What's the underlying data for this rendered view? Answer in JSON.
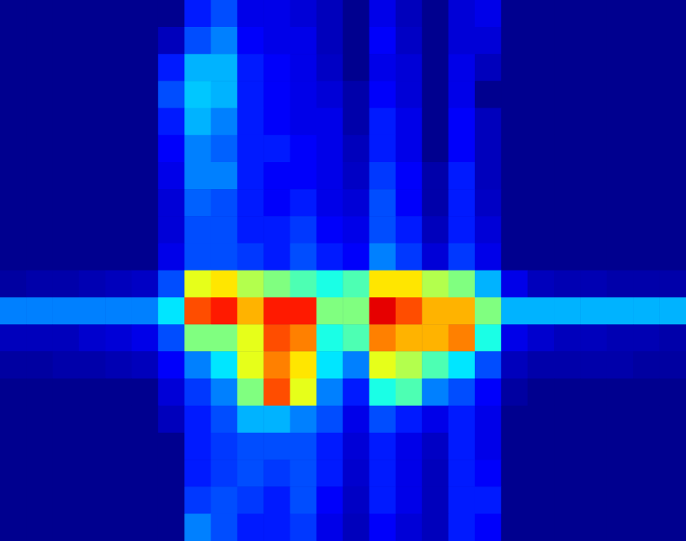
{
  "chart_data": {
    "type": "heatmap",
    "tick_labels": false,
    "grid": false,
    "value_range": [
      0,
      10
    ],
    "cells": [
      [
        0,
        0,
        0,
        0,
        0,
        0,
        0,
        1.5,
        2,
        1,
        1,
        0.8,
        0.5,
        0,
        1,
        0.5,
        0,
        0.8,
        1,
        0,
        0,
        0,
        0,
        0,
        0,
        0
      ],
      [
        0,
        0,
        0,
        0,
        0,
        0,
        0.5,
        2,
        2.5,
        1.2,
        1,
        1,
        0.5,
        0,
        1.2,
        0.6,
        0,
        0.8,
        0.8,
        0,
        0,
        0,
        0,
        0,
        0,
        0
      ],
      [
        0,
        0,
        0,
        0,
        0,
        0,
        1.5,
        3,
        3,
        1.5,
        1.2,
        1,
        0.6,
        0,
        1,
        0.8,
        0,
        1,
        0.5,
        0,
        0,
        0,
        0,
        0,
        0,
        0
      ],
      [
        0,
        0,
        0,
        0,
        0,
        0,
        2,
        3.2,
        3,
        1.5,
        1.2,
        1,
        0.8,
        0.3,
        1.2,
        0.8,
        0,
        1,
        0,
        0,
        0,
        0,
        0,
        0,
        0,
        0
      ],
      [
        0,
        0,
        0,
        0,
        0,
        0,
        1.5,
        3,
        2.5,
        1.5,
        1.2,
        1,
        1,
        0.3,
        1.5,
        1,
        0,
        1.2,
        0.5,
        0,
        0,
        0,
        0,
        0,
        0,
        0
      ],
      [
        0,
        0,
        0,
        0,
        0,
        0,
        1.2,
        2.5,
        2.2,
        1.5,
        1.5,
        1.2,
        1,
        0.5,
        1.5,
        1,
        0,
        1.2,
        0.5,
        0,
        0,
        0,
        0,
        0,
        0,
        0
      ],
      [
        0,
        0,
        0,
        0,
        0,
        0,
        1,
        2.5,
        2.5,
        1.5,
        1.2,
        1.2,
        1,
        0.6,
        1.8,
        1.2,
        0.3,
        1.5,
        0.5,
        0,
        0,
        0,
        0,
        0,
        0,
        0
      ],
      [
        0,
        0,
        0,
        0,
        0,
        0,
        0.8,
        2.2,
        2,
        1.5,
        1.2,
        1.5,
        1,
        0.8,
        2,
        1.2,
        0.3,
        1.5,
        0.6,
        0,
        0,
        0,
        0,
        0,
        0,
        0
      ],
      [
        0,
        0,
        0,
        0,
        0,
        0,
        0.8,
        2,
        2,
        1.5,
        1.5,
        1.8,
        1.2,
        1,
        2,
        1.5,
        0.5,
        1.5,
        0.8,
        0,
        0,
        0,
        0,
        0,
        0,
        0
      ],
      [
        0,
        0,
        0,
        0,
        0,
        0,
        1,
        2,
        2,
        1.8,
        1.5,
        2,
        1.5,
        1.2,
        2.5,
        1.8,
        0.8,
        1.8,
        1,
        0,
        0,
        0,
        0,
        0,
        0,
        0
      ],
      [
        0.2,
        0.3,
        0.3,
        0.4,
        0.5,
        0.6,
        2,
        6,
        6.5,
        5.5,
        5,
        4.5,
        4,
        4.5,
        6.5,
        6.5,
        5.5,
        5,
        3,
        1,
        0.5,
        0.4,
        0.4,
        0.3,
        0.3,
        0.3
      ],
      [
        2.5,
        2.5,
        2.5,
        2.5,
        2.5,
        2.5,
        3.5,
        8,
        8.5,
        7,
        8.5,
        8.5,
        5,
        5,
        9,
        8,
        7,
        7,
        5,
        3,
        3,
        3,
        3,
        3,
        3,
        3
      ],
      [
        0.5,
        0.5,
        0.5,
        0.7,
        0.8,
        1,
        2,
        5,
        5,
        6,
        8,
        7.5,
        4,
        4.5,
        7.5,
        7,
        7,
        7.5,
        4,
        1,
        0.7,
        0.5,
        0.5,
        0.4,
        0.4,
        0.3
      ],
      [
        0.2,
        0.2,
        0.3,
        0.3,
        0.4,
        0.5,
        1.2,
        2.5,
        3.5,
        6,
        7.5,
        6.5,
        3.5,
        2.5,
        6,
        5.5,
        4.5,
        3.5,
        2,
        0.5,
        0.3,
        0.3,
        0.3,
        0.3,
        0.2,
        0.2
      ],
      [
        0,
        0,
        0,
        0,
        0,
        0,
        0.8,
        1.8,
        2.5,
        5,
        8,
        6,
        2.5,
        1.5,
        4,
        4.5,
        2.5,
        2,
        1.2,
        0.2,
        0,
        0,
        0,
        0,
        0,
        0
      ],
      [
        0,
        0,
        0,
        0,
        0,
        0,
        0.5,
        1.5,
        2,
        3,
        3,
        2.5,
        2,
        1,
        2,
        1.5,
        1,
        1.5,
        1,
        0,
        0,
        0,
        0,
        0,
        0,
        0
      ],
      [
        0,
        0,
        0,
        0,
        0,
        0,
        0,
        1.5,
        1.8,
        2,
        2,
        2,
        1.5,
        0.8,
        1.5,
        1,
        0.6,
        1.5,
        1,
        0,
        0,
        0,
        0,
        0,
        0,
        0
      ],
      [
        0,
        0,
        0,
        0,
        0,
        0,
        0,
        1.5,
        1.8,
        2,
        1.8,
        2,
        1.5,
        0.7,
        1.5,
        1,
        0.5,
        1.5,
        1.2,
        0,
        0,
        0,
        0,
        0,
        0,
        0
      ],
      [
        0,
        0,
        0,
        0,
        0,
        0,
        0,
        1.8,
        2,
        1.8,
        1.5,
        2,
        1.2,
        0.6,
        1.5,
        1,
        0.5,
        1.5,
        1.5,
        0,
        0,
        0,
        0,
        0,
        0,
        0
      ],
      [
        0,
        0,
        0,
        0,
        0,
        0,
        0,
        2.5,
        2,
        1.5,
        1.5,
        1.8,
        1,
        0.5,
        1.2,
        0.8,
        0.5,
        1.5,
        1.2,
        0,
        0,
        0,
        0,
        0,
        0,
        0
      ]
    ]
  }
}
